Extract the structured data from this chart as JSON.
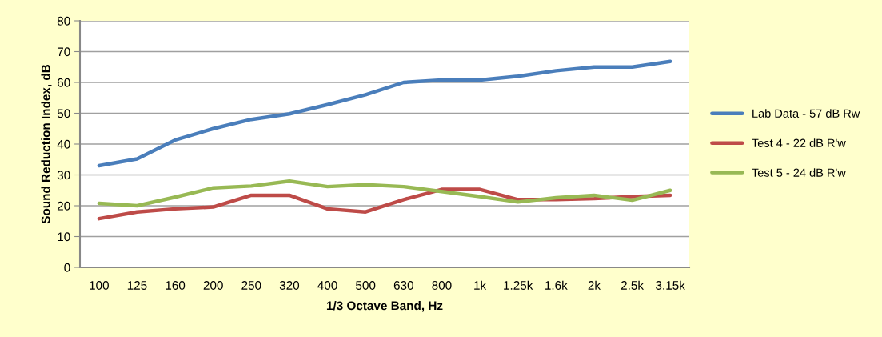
{
  "chart_data": {
    "type": "line",
    "xlabel": "1/3 Octave Band, Hz",
    "ylabel": "Sound Reduction Index, dB",
    "categories": [
      "100",
      "125",
      "160",
      "200",
      "250",
      "320",
      "400",
      "500",
      "630",
      "800",
      "1k",
      "1.25k",
      "1.6k",
      "2k",
      "2.5k",
      "3.15k"
    ],
    "series": [
      {
        "name": "Lab Data - 57 dB Rw",
        "color": "#4a7ebb",
        "values": [
          33,
          35.2,
          41.3,
          45,
          48,
          49.8,
          52.8,
          56,
          60,
          60.8,
          60.8,
          62,
          63.8,
          65,
          65,
          66.8
        ]
      },
      {
        "name": "Test 4 - 22 dB R'w",
        "color": "#be4b48",
        "values": [
          15.8,
          18,
          19,
          19.6,
          23.4,
          23.4,
          19,
          18,
          22,
          25.3,
          25.3,
          22,
          22,
          22.3,
          23,
          23.4
        ]
      },
      {
        "name": "Test 5 - 24 dB R'w",
        "color": "#98b954",
        "values": [
          20.8,
          20,
          22.8,
          25.8,
          26.4,
          28,
          26.2,
          26.8,
          26.2,
          24.6,
          23,
          21.2,
          22.6,
          23.4,
          21.8,
          25
        ]
      }
    ],
    "ylim": [
      0,
      80
    ],
    "yticks": [
      0,
      10,
      20,
      30,
      40,
      50,
      60,
      70,
      80
    ],
    "grid": "y",
    "legend": "right",
    "marker": "none",
    "line_style": "solid"
  }
}
